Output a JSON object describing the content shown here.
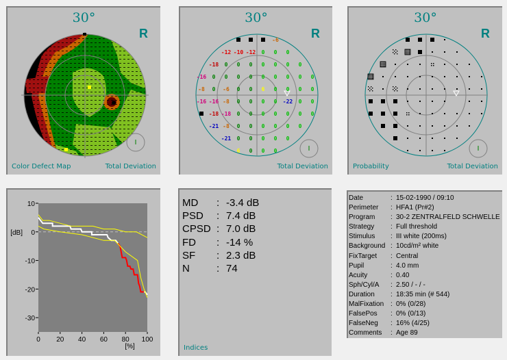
{
  "common": {
    "degree": "30°",
    "eye": "R",
    "teal": "#008080"
  },
  "panels": {
    "color_defect": {
      "left_label": "Color Defect Map",
      "right_label": "Total Deviation"
    },
    "total_deviation": {
      "right_label": "Total Deviation",
      "rows": [
        {
          "start": 4,
          "values": [
            "B",
            "B",
            "B",
            "-6"
          ]
        },
        {
          "start": 3,
          "values": [
            "-12",
            "-10",
            "-12",
            "0",
            "0",
            "0"
          ]
        },
        {
          "start": 2,
          "values": [
            "-18",
            "0",
            "0",
            "0",
            "0",
            "0",
            "0",
            "0"
          ]
        },
        {
          "start": 1,
          "values": [
            "-16",
            "0",
            "0",
            "0",
            "0",
            "0",
            "0",
            "0",
            "0",
            "0"
          ]
        },
        {
          "start": 1,
          "values": [
            "-8",
            "0",
            "-6",
            "0",
            "0",
            "6",
            "0",
            "0",
            "0",
            "0"
          ]
        },
        {
          "start": 1,
          "values": [
            "-16",
            "-16",
            "-8",
            "0",
            "0",
            "0",
            "0",
            "-22",
            "0",
            "0"
          ]
        },
        {
          "start": 1,
          "values": [
            "B",
            "-18",
            "-18",
            "0",
            "0",
            "0",
            "0",
            "0",
            "0",
            "0"
          ]
        },
        {
          "start": 2,
          "values": [
            "-21",
            "-8",
            "0",
            "0",
            "0",
            "0",
            "0",
            "0"
          ]
        },
        {
          "start": 3,
          "values": [
            "-21",
            "0",
            "0",
            "0",
            "0",
            "0"
          ]
        },
        {
          "start": 4,
          "values": [
            "6",
            "0",
            "0",
            "0"
          ]
        }
      ]
    },
    "probability": {
      "left_label": "Probability",
      "right_label": "Total Deviation",
      "rows": [
        {
          "start": 4,
          "values": [
            "B",
            "B",
            "B",
            "."
          ]
        },
        {
          "start": 3,
          "values": [
            "c2",
            "c3",
            "B",
            ".",
            ".",
            "."
          ]
        },
        {
          "start": 2,
          "values": [
            "c3",
            ".",
            ".",
            ".",
            "c1",
            ".",
            ".",
            "."
          ]
        },
        {
          "start": 1,
          "values": [
            "c3",
            ".",
            ".",
            ".",
            ".",
            ".",
            ".",
            ".",
            ".",
            "."
          ]
        },
        {
          "start": 1,
          "values": [
            "c2",
            ".",
            "c2",
            ".",
            ".",
            ".",
            ".",
            ".",
            ".",
            "."
          ]
        },
        {
          "start": 1,
          "values": [
            "B",
            "B",
            "B",
            ".",
            ".",
            ".",
            ".",
            "",
            ".",
            "."
          ]
        },
        {
          "start": 1,
          "values": [
            "B",
            "B",
            "B",
            "c1",
            ".",
            ".",
            ".",
            ".",
            ".",
            "."
          ]
        },
        {
          "start": 2,
          "values": [
            "B",
            "B",
            ".",
            ".",
            ".",
            ".",
            ".",
            "."
          ]
        },
        {
          "start": 3,
          "values": [
            "B",
            ".",
            ".",
            ".",
            ".",
            "."
          ]
        },
        {
          "start": 4,
          "values": [
            ".",
            ".",
            ".",
            "."
          ]
        }
      ]
    },
    "indices": {
      "label": "Indices",
      "items": [
        {
          "key": "MD",
          "value": "-3.4 dB"
        },
        {
          "key": "PSD",
          "value": "7.4 dB"
        },
        {
          "key": "CPSD",
          "value": "7.0 dB"
        },
        {
          "key": "FD",
          "value": "-14 %"
        },
        {
          "key": "SF",
          "value": "2.3 dB"
        },
        {
          "key": "N",
          "value": "74"
        }
      ]
    },
    "info": {
      "items": [
        {
          "key": "Date",
          "value": "15-02-1990 / 09:10"
        },
        {
          "key": "Perimeter",
          "value": "HFA1  (Pr#2)"
        },
        {
          "key": "Program",
          "value": "30-2 ZENTRALFELD SCHWELLE"
        },
        {
          "key": "Strategy",
          "value": "Full threshold"
        },
        {
          "key": "Stimulus",
          "value": "III  white (200ms)"
        },
        {
          "key": "Background",
          "value": "10cd/m²  white"
        },
        {
          "key": "FixTarget",
          "value": "Central"
        },
        {
          "key": "Pupil",
          "value": " 4.0 mm"
        },
        {
          "key": "Acuity",
          "value": "0.40"
        },
        {
          "key": "Sph/Cyl/A",
          "value": "2.50 / - / -"
        },
        {
          "key": "Duration",
          "value": "18:35 min  (# 544)"
        },
        {
          "key": "MalFixation",
          "value": "0% (0/28)"
        },
        {
          "key": "FalsePos",
          "value": "0% (0/13)"
        },
        {
          "key": "FalseNeg",
          "value": "16% (4/25)"
        },
        {
          "key": "Comments",
          "value": "Age  89"
        }
      ]
    }
  },
  "chart_data": {
    "type": "line",
    "title": "",
    "xlabel": "[%]",
    "ylabel": "[dB]",
    "xlim": [
      0,
      100
    ],
    "ylim": [
      -35,
      10
    ],
    "xticks": [
      "0",
      "20",
      "40",
      "60",
      "80",
      "100"
    ],
    "yticks": [
      "10",
      "0",
      "-10",
      "-20",
      "-30"
    ],
    "series": [
      {
        "name": "curve",
        "color": "#ffffff",
        "points": [
          [
            0,
            5
          ],
          [
            2,
            4
          ],
          [
            4,
            3
          ],
          [
            13,
            3
          ],
          [
            13,
            2
          ],
          [
            29,
            2
          ],
          [
            30,
            1
          ],
          [
            39,
            1
          ],
          [
            40,
            0
          ],
          [
            49,
            0
          ],
          [
            49,
            -1
          ],
          [
            63,
            -1
          ],
          [
            64,
            -2
          ],
          [
            67,
            -3
          ],
          [
            71,
            -3
          ],
          [
            73,
            -4
          ]
        ]
      },
      {
        "name": "curve-abnormal",
        "color": "#ff0000",
        "points": [
          [
            73,
            -4
          ],
          [
            75,
            -5
          ],
          [
            76,
            -7
          ],
          [
            77,
            -9
          ],
          [
            80,
            -9
          ],
          [
            81,
            -10
          ],
          [
            82,
            -12
          ],
          [
            84,
            -12
          ],
          [
            85,
            -13
          ],
          [
            87,
            -13
          ],
          [
            88,
            -15
          ],
          [
            91,
            -15
          ],
          [
            92,
            -18
          ],
          [
            93,
            -19
          ],
          [
            94,
            -21
          ],
          [
            97,
            -21
          ]
        ]
      },
      {
        "name": "curve-tail",
        "color": "#ffffff",
        "points": [
          [
            97,
            -21
          ],
          [
            98,
            -21
          ],
          [
            100,
            -22
          ]
        ]
      },
      {
        "name": "normal-upper",
        "color": "#ffff00",
        "points": [
          [
            0,
            6
          ],
          [
            4,
            4
          ],
          [
            10,
            4
          ],
          [
            30,
            2
          ],
          [
            50,
            2
          ],
          [
            60,
            1
          ],
          [
            70,
            1
          ],
          [
            80,
            0
          ],
          [
            90,
            0
          ],
          [
            100,
            -2
          ]
        ]
      },
      {
        "name": "normal-lower",
        "color": "#ffff00",
        "points": [
          [
            0,
            2
          ],
          [
            5,
            1
          ],
          [
            20,
            0
          ],
          [
            40,
            -1
          ],
          [
            60,
            -3
          ],
          [
            70,
            -3
          ],
          [
            75,
            -5
          ],
          [
            80,
            -7
          ],
          [
            91,
            -10
          ],
          [
            94,
            -16
          ],
          [
            97,
            -20
          ],
          [
            100,
            -23
          ]
        ]
      }
    ]
  }
}
